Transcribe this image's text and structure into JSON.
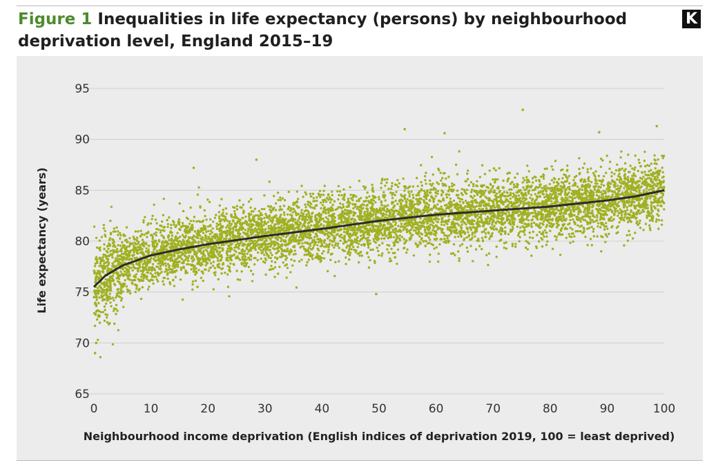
{
  "header": {
    "figure_label": "Figure 1",
    "title": "Inequalities in life expectancy (persons) by neighbourhood deprivation level, England 2015–19",
    "logo_letter": "K"
  },
  "colors": {
    "points": "#a0b022",
    "trend": "#2b2b2b",
    "grid": "#cfcfcf",
    "panel": "#ececec",
    "accent": "#4e8a2f"
  },
  "chart_data": {
    "type": "scatter",
    "title": "Inequalities in life expectancy (persons) by neighbourhood deprivation level, England 2015–19",
    "xlabel": "Neighbourhood income deprivation (English indices of deprivation 2019, 100 = least deprived)",
    "ylabel": "Life expectancy (years)",
    "xlim": [
      0,
      100
    ],
    "ylim": [
      65,
      95
    ],
    "x_ticks": [
      0,
      10,
      20,
      30,
      40,
      50,
      60,
      70,
      80,
      90,
      100
    ],
    "y_ticks": [
      65,
      70,
      75,
      80,
      85,
      90,
      95
    ],
    "grid": "horizontal",
    "trend_line": {
      "x": [
        0,
        2,
        5,
        10,
        15,
        20,
        30,
        40,
        50,
        60,
        70,
        80,
        90,
        95,
        100
      ],
      "y": [
        75.5,
        76.6,
        77.6,
        78.6,
        79.2,
        79.7,
        80.5,
        81.2,
        82.0,
        82.6,
        83.0,
        83.4,
        84.0,
        84.4,
        85.0
      ]
    },
    "point_spread_sd": 1.6,
    "point_count": 6800,
    "notable_points": [
      {
        "x": 0.2,
        "y": 69.0
      },
      {
        "x": 0.4,
        "y": 70.0
      },
      {
        "x": 17.5,
        "y": 87.2
      },
      {
        "x": 28.5,
        "y": 88.0
      },
      {
        "x": 54.5,
        "y": 91.0
      },
      {
        "x": 61.5,
        "y": 90.6
      },
      {
        "x": 75.2,
        "y": 92.9
      },
      {
        "x": 88.6,
        "y": 90.7
      },
      {
        "x": 98.7,
        "y": 91.3
      },
      {
        "x": 49.5,
        "y": 74.8
      }
    ]
  }
}
